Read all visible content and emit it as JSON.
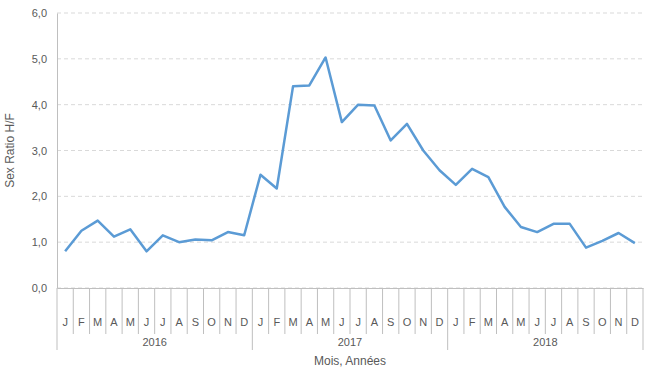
{
  "chart_data": {
    "type": "line",
    "y_label": "Sex Ratio H/F",
    "x_label": "Mois, Années",
    "categories": [
      "J",
      "F",
      "M",
      "A",
      "M",
      "J",
      "J",
      "A",
      "S",
      "O",
      "N",
      "D",
      "J",
      "F",
      "M",
      "A",
      "M",
      "J",
      "J",
      "A",
      "S",
      "O",
      "N",
      "D",
      "J",
      "F",
      "M",
      "A",
      "M",
      "J",
      "J",
      "A",
      "S",
      "O",
      "N",
      "D"
    ],
    "x_groups": [
      "2016",
      "2017",
      "2018"
    ],
    "values": [
      0.8,
      1.25,
      1.47,
      1.12,
      1.28,
      0.8,
      1.15,
      1.0,
      1.06,
      1.04,
      1.22,
      1.15,
      2.47,
      2.17,
      4.4,
      4.42,
      5.03,
      3.62,
      4.0,
      3.98,
      3.22,
      3.58,
      3.0,
      2.57,
      2.25,
      2.6,
      2.42,
      1.77,
      1.33,
      1.22,
      1.4,
      1.4,
      0.88,
      1.03,
      1.2,
      0.98
    ],
    "color": "#5B9BD5",
    "ylim": [
      0,
      6
    ],
    "yticks": [
      {
        "value": 0,
        "label": "0,0"
      },
      {
        "value": 1,
        "label": "1,0"
      },
      {
        "value": 2,
        "label": "2,0"
      },
      {
        "value": 3,
        "label": "3,0"
      },
      {
        "value": 4,
        "label": "4,0"
      },
      {
        "value": 5,
        "label": "5,0"
      },
      {
        "value": 6,
        "label": "6,0"
      }
    ],
    "grid": true
  }
}
